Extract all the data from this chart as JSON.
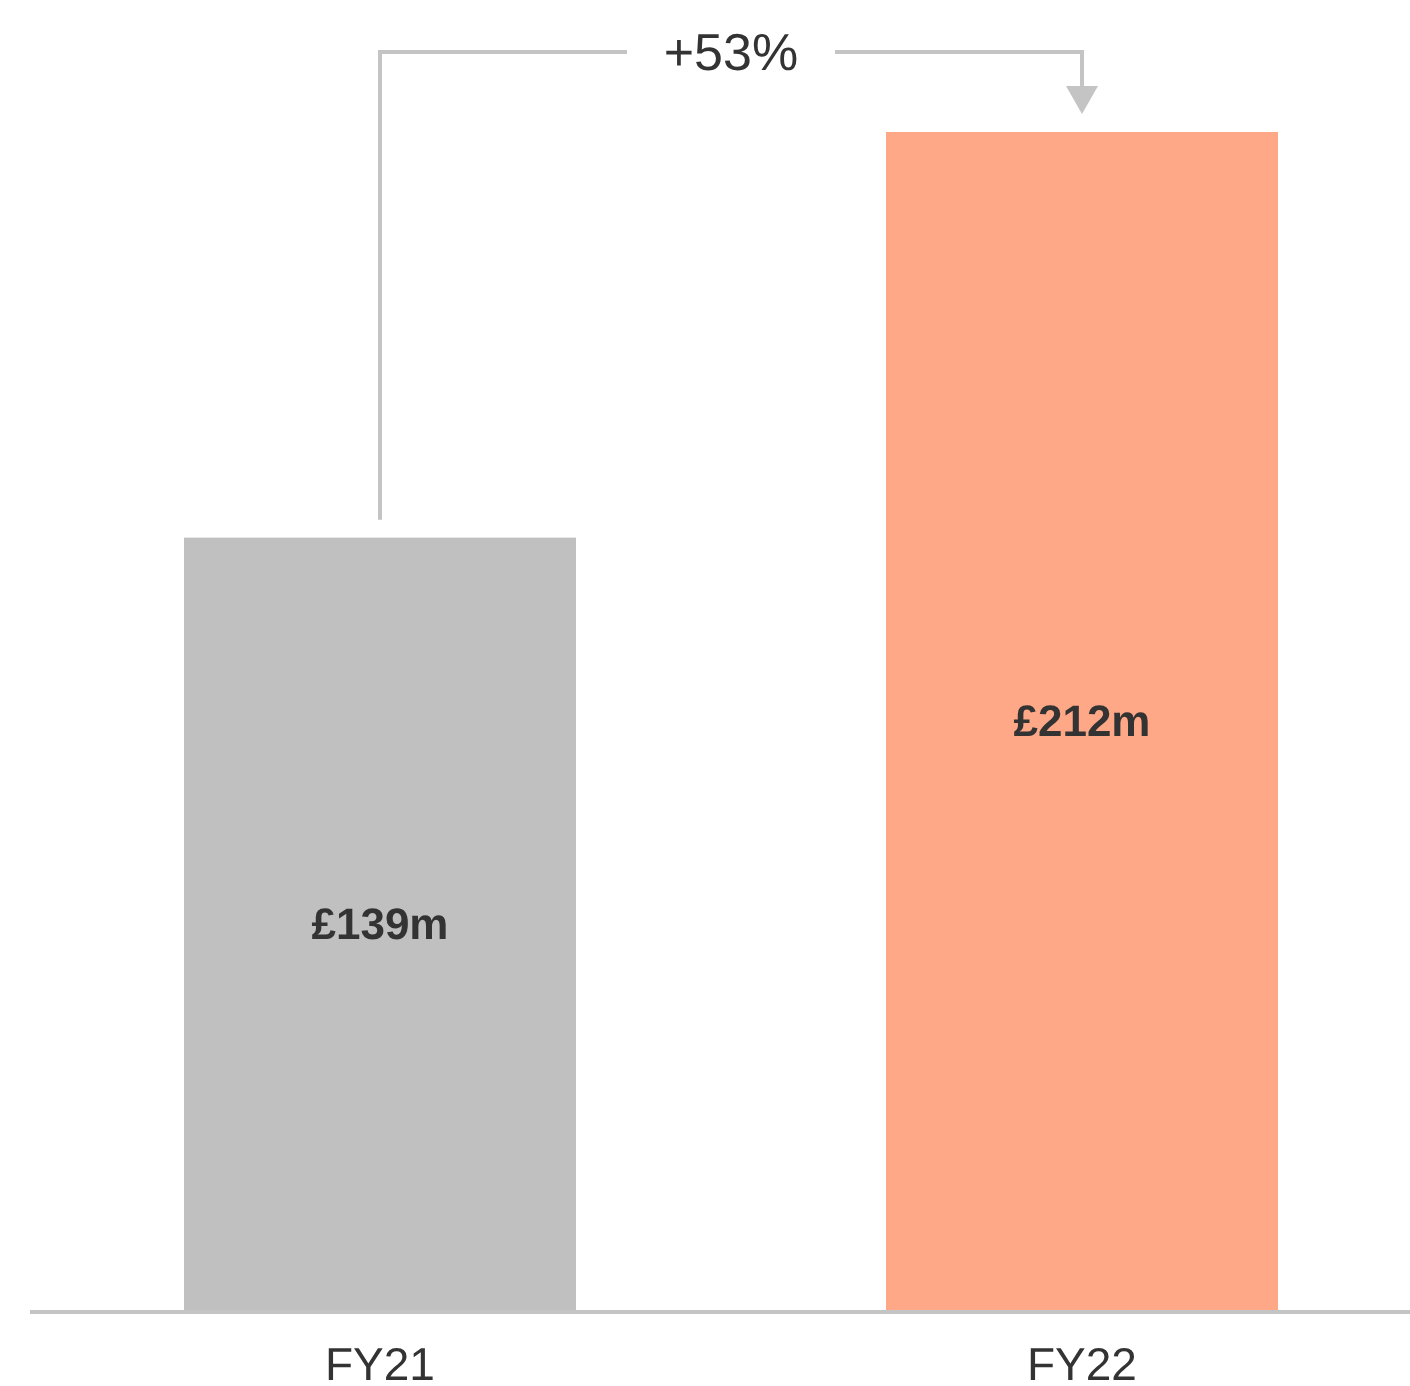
{
  "chart_data": {
    "type": "bar",
    "categories": [
      "FY21",
      "FY22"
    ],
    "values": [
      139,
      212
    ],
    "colors": [
      "#c0c0c0",
      "#ffa887"
    ],
    "value_labels": [
      "£139m",
      "£212m"
    ],
    "annotations": [
      "+53%"
    ]
  }
}
